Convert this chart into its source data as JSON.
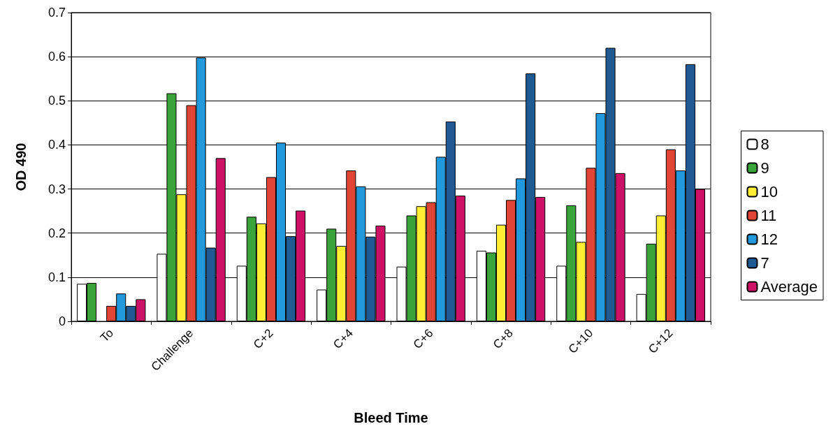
{
  "chart_data": {
    "type": "bar",
    "xlabel": "Bleed Time",
    "ylabel": "OD 490",
    "categories": [
      "To",
      "Challenge",
      "C+2",
      "C+4",
      "C+6",
      "C+8",
      "C+10",
      "C+12"
    ],
    "series": [
      {
        "name": "8",
        "color": "#ffffff",
        "values": [
          0.085,
          0.153,
          0.126,
          0.072,
          0.124,
          0.16,
          0.126,
          0.062
        ]
      },
      {
        "name": "9",
        "color": "#3aa33a",
        "values": [
          0.087,
          0.517,
          0.237,
          0.21,
          0.24,
          0.156,
          0.263,
          0.176
        ]
      },
      {
        "name": "10",
        "color": "#ffee33",
        "values": [
          null,
          0.288,
          0.222,
          0.171,
          0.261,
          0.219,
          0.18,
          0.24
        ]
      },
      {
        "name": "11",
        "color": "#e04535",
        "values": [
          0.035,
          0.49,
          0.327,
          0.342,
          0.27,
          0.275,
          0.348,
          0.39
        ]
      },
      {
        "name": "12",
        "color": "#2299dd",
        "values": [
          0.063,
          0.598,
          0.405,
          0.306,
          0.373,
          0.324,
          0.472,
          0.342
        ]
      },
      {
        "name": "7",
        "color": "#1f5a93",
        "values": [
          0.035,
          0.167,
          0.193,
          0.192,
          0.453,
          0.562,
          0.62,
          0.583
        ]
      },
      {
        "name": "Average",
        "color": "#cc1166",
        "values": [
          0.05,
          0.37,
          0.251,
          0.217,
          0.285,
          0.282,
          0.336,
          0.3
        ]
      }
    ],
    "ylim": [
      0,
      0.7
    ],
    "yticks": [
      0,
      0.1,
      0.2,
      0.3,
      0.4,
      0.5,
      0.6,
      0.7
    ],
    "grid": "y",
    "legend": "right"
  }
}
